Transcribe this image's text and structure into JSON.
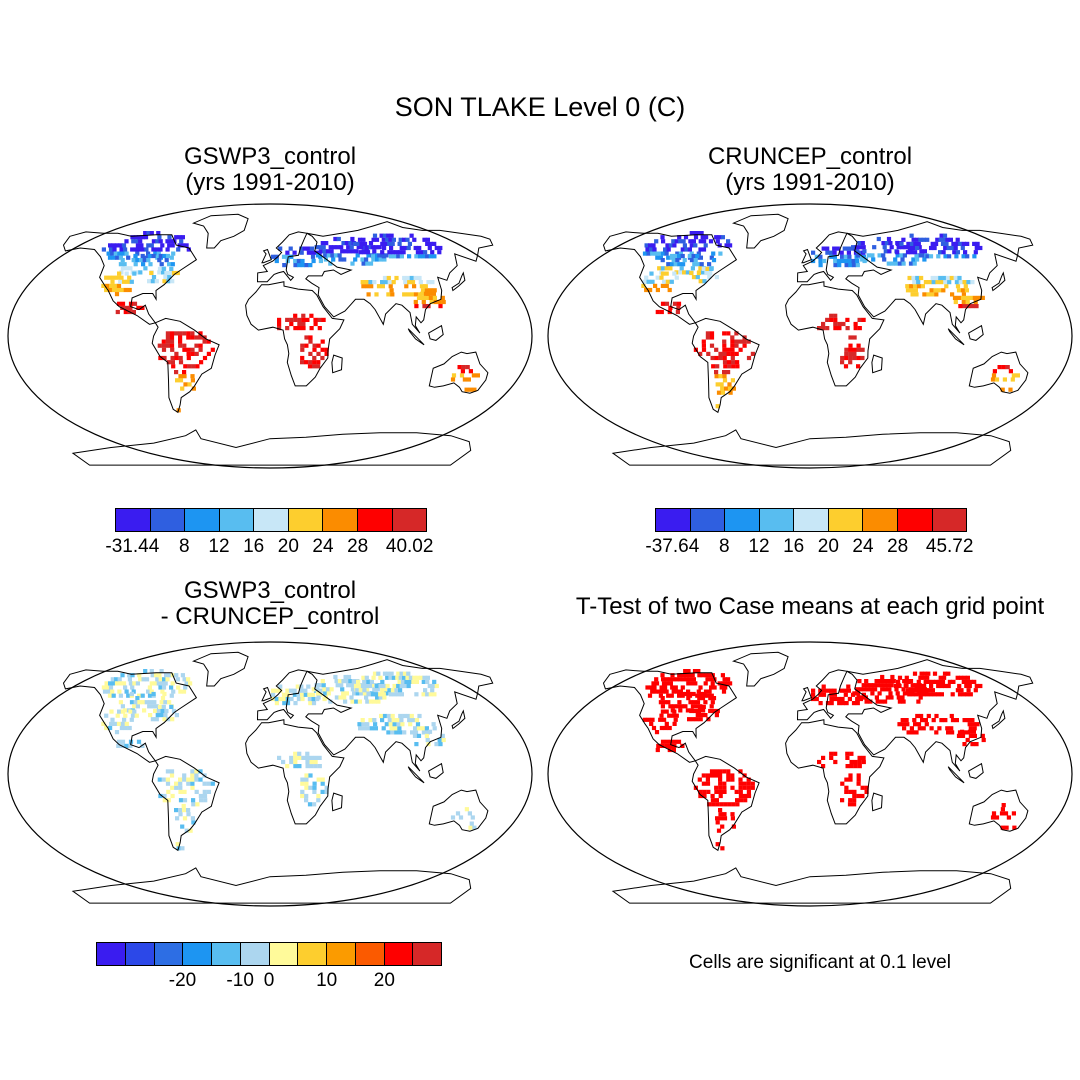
{
  "title": "SON TLAKE Level 0 (C)",
  "panels": [
    {
      "id": "p1",
      "title_line1": "GSWP3_control",
      "title_line2": "(yrs 1991-2010)",
      "kind": "abs"
    },
    {
      "id": "p2",
      "title_line1": "CRUNCEP_control",
      "title_line2": "(yrs 1991-2010)",
      "kind": "abs"
    },
    {
      "id": "p3",
      "title_line1": "GSWP3_control",
      "title_line2": "- CRUNCEP_control",
      "kind": "diff"
    },
    {
      "id": "p4",
      "title_line1": "T-Test of two Case means at each grid point",
      "title_line2": "",
      "kind": "sig"
    }
  ],
  "colorbars": {
    "abs1": {
      "colors": [
        "#3a1cf0",
        "#2f5fe0",
        "#1d95f2",
        "#58bdf0",
        "#c8e7f7",
        "#fdce2e",
        "#fb8c00",
        "#fe0000",
        "#d62828"
      ],
      "labels": [
        "-31.44",
        "8",
        "12",
        "16",
        "20",
        "24",
        "28",
        "40.02"
      ]
    },
    "abs2": {
      "colors": [
        "#3a1cf0",
        "#2f5fe0",
        "#1d95f2",
        "#58bdf0",
        "#c8e7f7",
        "#fdce2e",
        "#fb8c00",
        "#fe0000",
        "#d62828"
      ],
      "labels": [
        "-37.64",
        "8",
        "12",
        "16",
        "20",
        "24",
        "28",
        "45.72"
      ]
    },
    "diff": {
      "colors": [
        "#3a1cf0",
        "#2c48e8",
        "#2d6ee4",
        "#1d95f2",
        "#58bdf0",
        "#acd6ef",
        "#fffa9a",
        "#fdce2e",
        "#fb9b00",
        "#fb5a00",
        "#fe0000",
        "#d62828"
      ],
      "labels": [
        "-20",
        "-10",
        "0",
        "10",
        "20"
      ]
    }
  },
  "significance_note": "Cells are significant at 0.1 level",
  "significance_color": "#fe0000",
  "map_data": {
    "projection": "robinson",
    "variable": "TLAKE",
    "season": "SON",
    "level": "0",
    "unit": "C"
  }
}
